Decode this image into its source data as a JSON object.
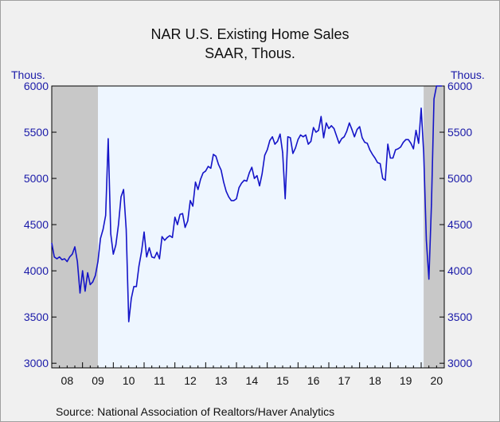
{
  "title": "NAR U.S. Existing Home Sales",
  "subtitle": "SAAR, Thous.",
  "source": "Source:  National Association of Realtors/Haver Analytics",
  "colors": {
    "line": "#1414c8",
    "plot_bg": "#eef6ff",
    "recession": "#c8c8c8",
    "axis_text": "#1a1aa8"
  },
  "chart_data": {
    "type": "line",
    "title": "NAR U.S. Existing Home Sales",
    "subtitle": "SAAR, Thous.",
    "ylabel_left": "Thous.",
    "ylabel_right": "Thous.",
    "ylim": [
      2950,
      6000
    ],
    "yticks": [
      3000,
      3500,
      4000,
      4500,
      5000,
      5500,
      6000
    ],
    "xlim": [
      2008.0,
      2020.75
    ],
    "xticks": [
      "08",
      "09",
      "10",
      "11",
      "12",
      "13",
      "14",
      "15",
      "16",
      "17",
      "18",
      "19",
      "20"
    ],
    "recessions": [
      {
        "start": 2008.0,
        "end": 2009.5
      },
      {
        "start": 2020.08,
        "end": 2020.75
      }
    ],
    "grid": false,
    "legend": "none",
    "series": [
      {
        "x": [
          2008.0,
          2008.083,
          2008.167,
          2008.25,
          2008.333,
          2008.417,
          2008.5,
          2008.583,
          2008.667,
          2008.75,
          2008.833,
          2008.917,
          2009.0,
          2009.083,
          2009.167,
          2009.25,
          2009.333,
          2009.417,
          2009.5,
          2009.583,
          2009.667,
          2009.75,
          2009.833,
          2009.917,
          2010.0,
          2010.083,
          2010.167,
          2010.25,
          2010.333,
          2010.417,
          2010.5,
          2010.583,
          2010.667,
          2010.75,
          2010.833,
          2010.917,
          2011.0,
          2011.083,
          2011.167,
          2011.25,
          2011.333,
          2011.417,
          2011.5,
          2011.583,
          2011.667,
          2011.75,
          2011.833,
          2011.917,
          2012.0,
          2012.083,
          2012.167,
          2012.25,
          2012.333,
          2012.417,
          2012.5,
          2012.583,
          2012.667,
          2012.75,
          2012.833,
          2012.917,
          2013.0,
          2013.083,
          2013.167,
          2013.25,
          2013.333,
          2013.417,
          2013.5,
          2013.583,
          2013.667,
          2013.75,
          2013.833,
          2013.917,
          2014.0,
          2014.083,
          2014.167,
          2014.25,
          2014.333,
          2014.417,
          2014.5,
          2014.583,
          2014.667,
          2014.75,
          2014.833,
          2014.917,
          2015.0,
          2015.083,
          2015.167,
          2015.25,
          2015.333,
          2015.417,
          2015.5,
          2015.583,
          2015.667,
          2015.75,
          2015.833,
          2015.917,
          2016.0,
          2016.083,
          2016.167,
          2016.25,
          2016.333,
          2016.417,
          2016.5,
          2016.583,
          2016.667,
          2016.75,
          2016.833,
          2016.917,
          2017.0,
          2017.083,
          2017.167,
          2017.25,
          2017.333,
          2017.417,
          2017.5,
          2017.583,
          2017.667,
          2017.75,
          2017.833,
          2017.917,
          2018.0,
          2018.083,
          2018.167,
          2018.25,
          2018.333,
          2018.417,
          2018.5,
          2018.583,
          2018.667,
          2018.75,
          2018.833,
          2018.917,
          2019.0,
          2019.083,
          2019.167,
          2019.25,
          2019.333,
          2019.417,
          2019.5,
          2019.583,
          2019.667,
          2019.75,
          2019.833,
          2019.917,
          2020.0,
          2020.083,
          2020.167,
          2020.25,
          2020.333,
          2020.417,
          2020.5,
          2020.583,
          2020.667
        ],
        "values": [
          4300,
          4150,
          4130,
          4150,
          4120,
          4130,
          4100,
          4150,
          4180,
          4260,
          4100,
          3760,
          4000,
          3780,
          3980,
          3850,
          3880,
          3950,
          4100,
          4350,
          4450,
          4600,
          5430,
          4400,
          4180,
          4280,
          4500,
          4800,
          4880,
          4450,
          3450,
          3700,
          3830,
          3830,
          4050,
          4210,
          4420,
          4150,
          4250,
          4150,
          4140,
          4200,
          4130,
          4370,
          4330,
          4360,
          4380,
          4360,
          4580,
          4500,
          4610,
          4620,
          4470,
          4540,
          4760,
          4700,
          4960,
          4880,
          4990,
          5060,
          5080,
          5130,
          5110,
          5260,
          5240,
          5150,
          5090,
          4960,
          4860,
          4800,
          4760,
          4760,
          4780,
          4900,
          4950,
          4980,
          4970,
          5060,
          5120,
          5000,
          5030,
          4920,
          5050,
          5250,
          5310,
          5410,
          5450,
          5370,
          5400,
          5480,
          5280,
          4780,
          5450,
          5440,
          5270,
          5330,
          5420,
          5470,
          5450,
          5470,
          5370,
          5400,
          5550,
          5500,
          5520,
          5670,
          5440,
          5600,
          5540,
          5570,
          5540,
          5460,
          5380,
          5430,
          5450,
          5510,
          5600,
          5530,
          5450,
          5530,
          5560,
          5440,
          5390,
          5380,
          5310,
          5260,
          5220,
          5170,
          5160,
          5000,
          4980,
          5370,
          5220,
          5220,
          5310,
          5320,
          5340,
          5390,
          5420,
          5420,
          5380,
          5320,
          5520,
          5380,
          5760,
          5270,
          4330,
          3910,
          4720,
          5860,
          6000,
          6000,
          6000
        ]
      }
    ]
  }
}
